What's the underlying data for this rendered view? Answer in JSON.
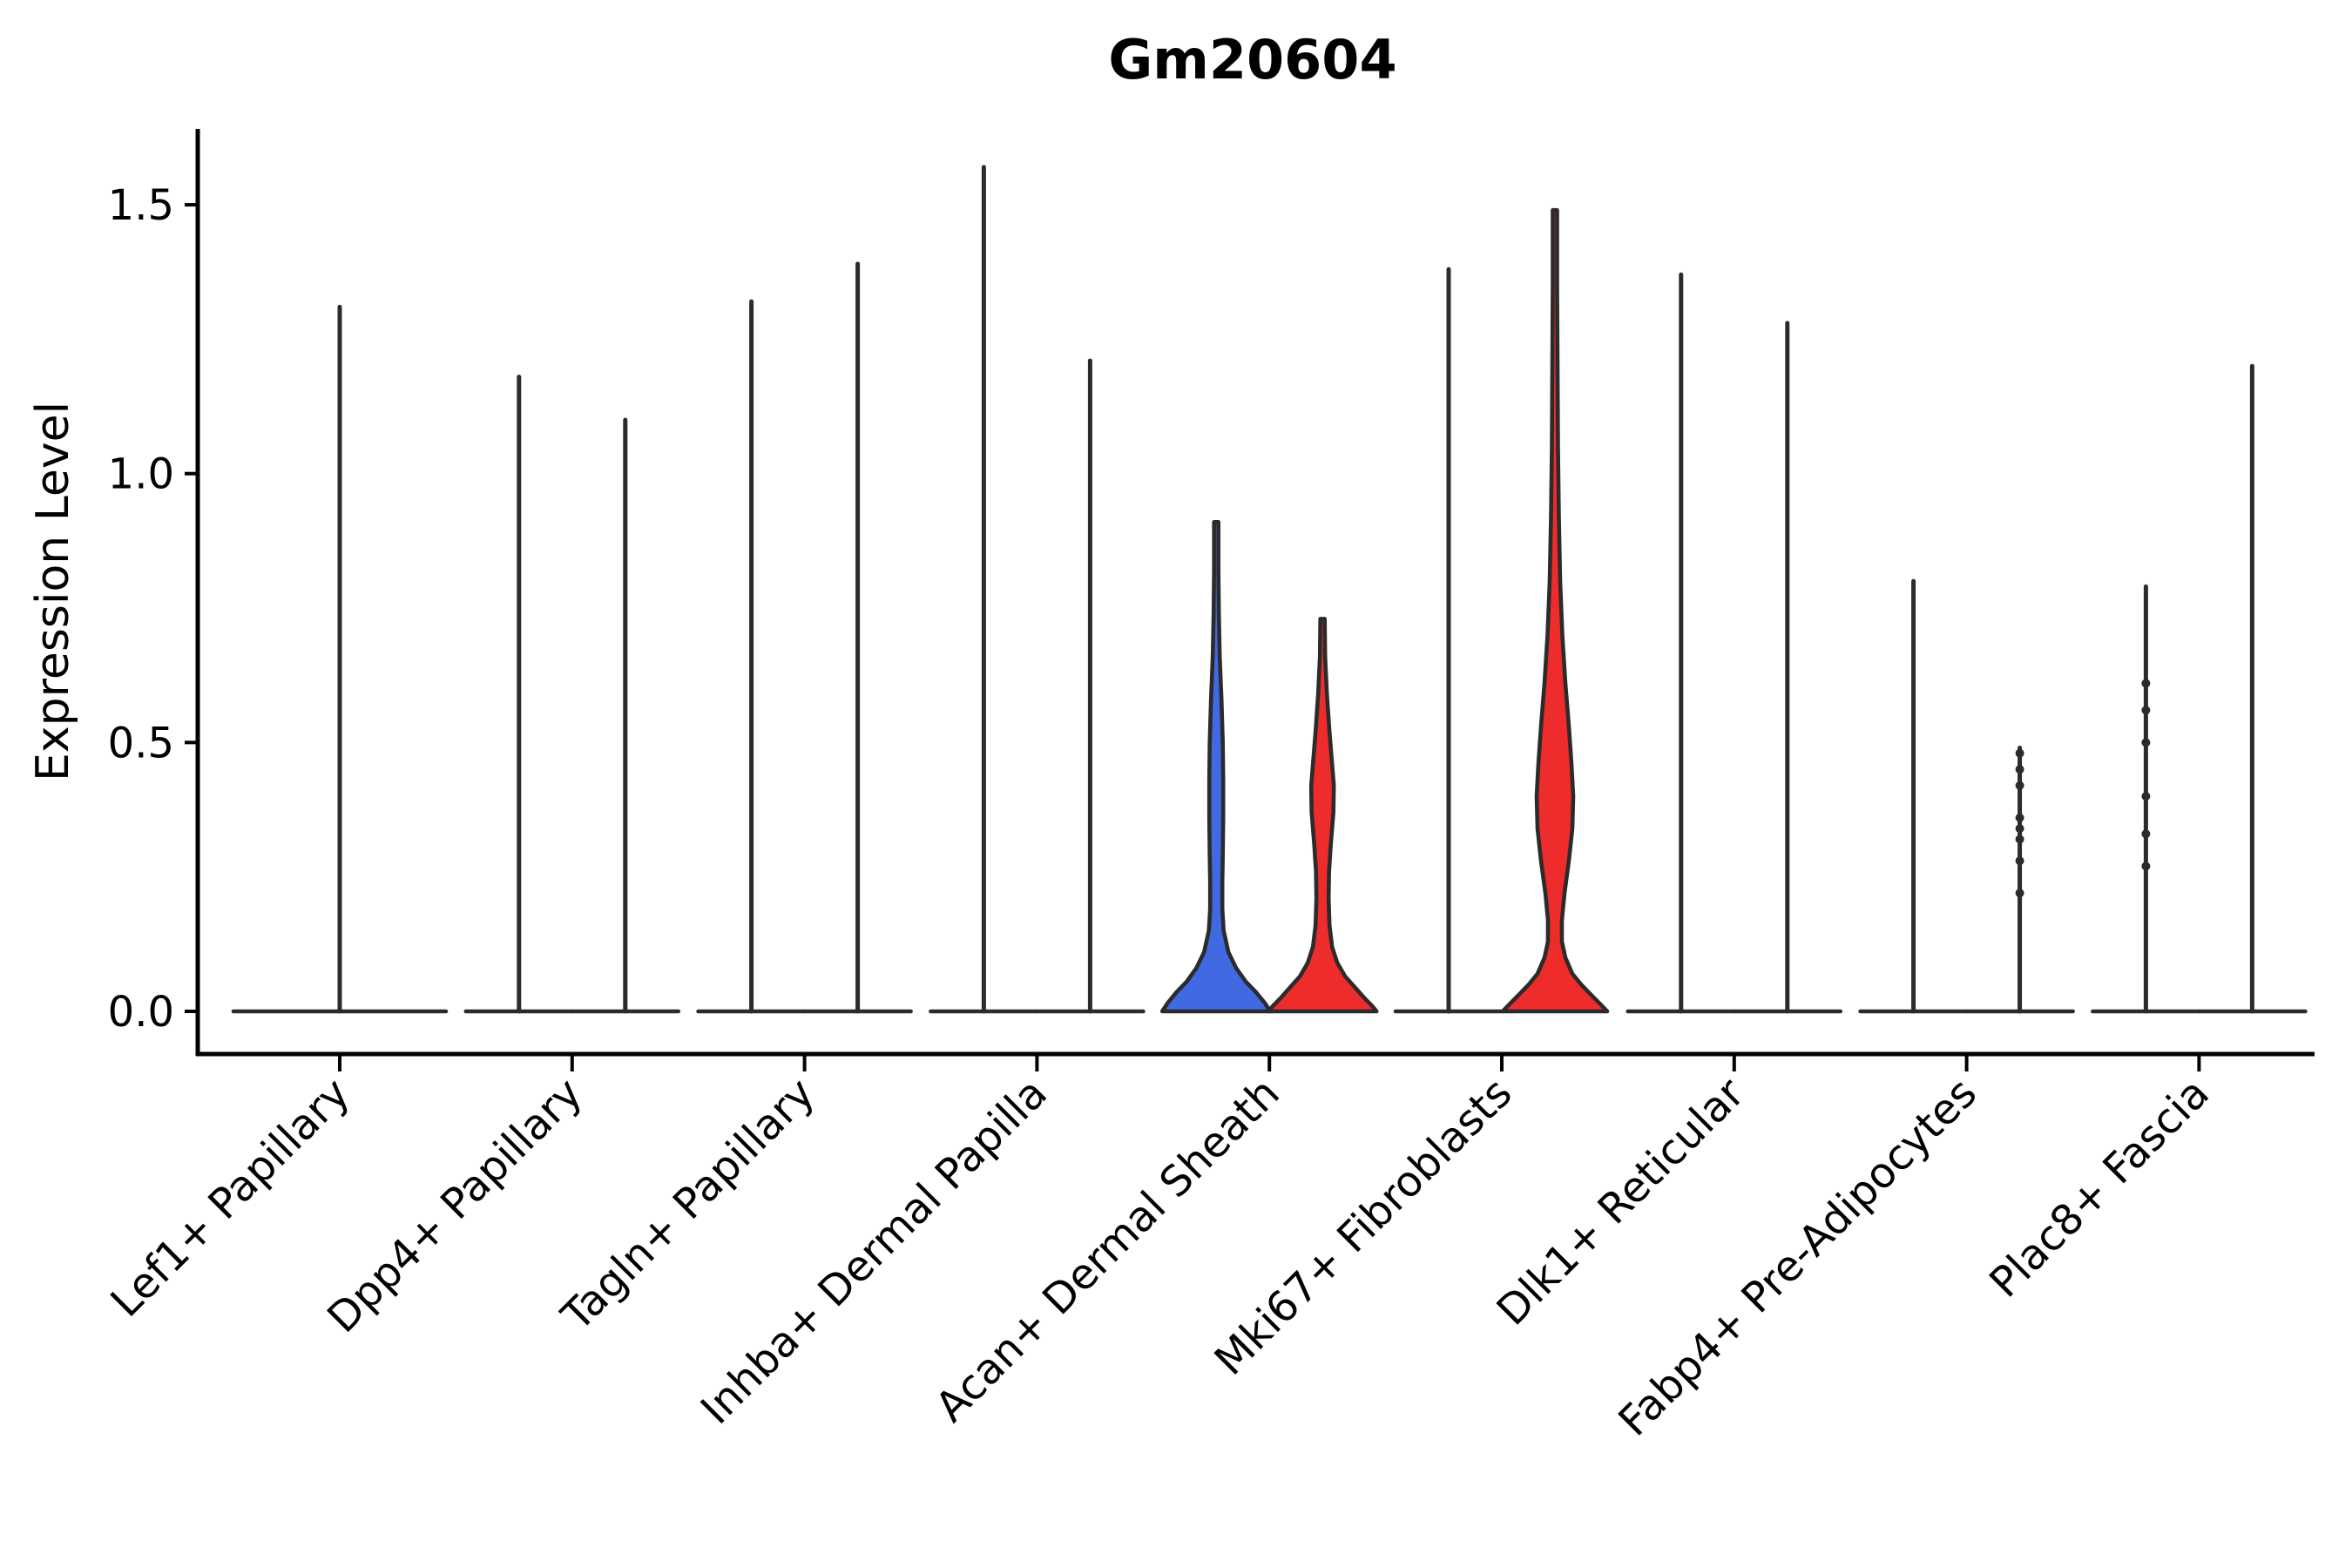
{
  "chart_data": {
    "type": "violin",
    "title": "Gm20604",
    "xlabel": "",
    "ylabel": "Expression Level",
    "yticks": [
      {
        "label": "0.0",
        "value": 0.0
      },
      {
        "label": "0.5",
        "value": 0.5
      },
      {
        "label": "1.0",
        "value": 1.0
      },
      {
        "label": "1.5",
        "value": 1.5
      }
    ],
    "ylim": [
      -0.05,
      1.64
    ],
    "grid": false,
    "legend": "none",
    "categories": [
      "Lef1+ Papillary",
      "Dpp4+ Papillary",
      "Tagln+ Papillary",
      "Inhba+ Dermal Papilla",
      "Acan+ Dermal Sheath",
      "Mki67+ Fibroblasts",
      "Dlk1+ Reticular",
      "Fabp4+ Pre-Adipocytes",
      "Plac8+ Fascia"
    ],
    "colors": {
      "blue_fill": "#4169E1",
      "red_fill": "#EE2C2C",
      "outline": "#2B2B2B",
      "axis": "#000000"
    },
    "violins": [
      {
        "category_index": 0,
        "side": "center",
        "span": "full",
        "max": 1.31,
        "fill": "none"
      },
      {
        "category_index": 1,
        "side": "left",
        "max": 1.18,
        "fill": "none"
      },
      {
        "category_index": 1,
        "side": "right",
        "max": 1.1,
        "fill": "none"
      },
      {
        "category_index": 2,
        "side": "left",
        "max": 1.32,
        "fill": "none"
      },
      {
        "category_index": 2,
        "side": "right",
        "max": 1.39,
        "fill": "none"
      },
      {
        "category_index": 3,
        "side": "left",
        "max": 1.57,
        "fill": "none"
      },
      {
        "category_index": 3,
        "side": "right",
        "max": 1.21,
        "fill": "none"
      },
      {
        "category_index": 4,
        "side": "left",
        "max": 0.91,
        "fill": "blue_fill",
        "profile": [
          [
            0.91,
            2.5
          ],
          [
            0.82,
            2.5
          ],
          [
            0.74,
            3
          ],
          [
            0.66,
            4
          ],
          [
            0.58,
            6
          ],
          [
            0.5,
            7.5
          ],
          [
            0.43,
            8
          ],
          [
            0.36,
            8
          ],
          [
            0.29,
            7.5
          ],
          [
            0.24,
            7
          ],
          [
            0.19,
            7
          ],
          [
            0.15,
            8.5
          ],
          [
            0.11,
            14
          ],
          [
            0.08,
            23
          ],
          [
            0.055,
            34
          ],
          [
            0.035,
            46
          ],
          [
            0.015,
            56
          ],
          [
            0.0,
            62
          ]
        ]
      },
      {
        "category_index": 4,
        "side": "right",
        "max": 0.73,
        "fill": "red_fill",
        "profile": [
          [
            0.73,
            2.5
          ],
          [
            0.66,
            3
          ],
          [
            0.59,
            5
          ],
          [
            0.52,
            8
          ],
          [
            0.46,
            11
          ],
          [
            0.42,
            13
          ],
          [
            0.37,
            12.5
          ],
          [
            0.31,
            9.5
          ],
          [
            0.26,
            7.5
          ],
          [
            0.21,
            7
          ],
          [
            0.16,
            8
          ],
          [
            0.12,
            11
          ],
          [
            0.09,
            17
          ],
          [
            0.065,
            26
          ],
          [
            0.045,
            37
          ],
          [
            0.025,
            48
          ],
          [
            0.01,
            57
          ],
          [
            0.0,
            62
          ]
        ]
      },
      {
        "category_index": 5,
        "side": "left",
        "max": 1.38,
        "fill": "none"
      },
      {
        "category_index": 5,
        "side": "right",
        "max": 1.49,
        "fill": "red_fill",
        "profile": [
          [
            1.49,
            2.5
          ],
          [
            1.35,
            2.5
          ],
          [
            1.2,
            3
          ],
          [
            1.05,
            3.5
          ],
          [
            0.92,
            4.5
          ],
          [
            0.8,
            6
          ],
          [
            0.7,
            8.5
          ],
          [
            0.61,
            12
          ],
          [
            0.53,
            16
          ],
          [
            0.46,
            19
          ],
          [
            0.4,
            21
          ],
          [
            0.34,
            20
          ],
          [
            0.28,
            16
          ],
          [
            0.22,
            11
          ],
          [
            0.17,
            8
          ],
          [
            0.13,
            8
          ],
          [
            0.1,
            12
          ],
          [
            0.07,
            20
          ],
          [
            0.05,
            30
          ],
          [
            0.03,
            42
          ],
          [
            0.012,
            53
          ],
          [
            0.0,
            60
          ]
        ]
      },
      {
        "category_index": 6,
        "side": "left",
        "max": 1.37,
        "fill": "none"
      },
      {
        "category_index": 6,
        "side": "right",
        "max": 1.28,
        "fill": "none"
      },
      {
        "category_index": 7,
        "side": "left",
        "max": 0.8,
        "fill": "none"
      },
      {
        "category_index": 7,
        "side": "right",
        "max": 0.49,
        "fill": "none",
        "dots": [
          0.48,
          0.45,
          0.42,
          0.36,
          0.34,
          0.32,
          0.28,
          0.22
        ]
      },
      {
        "category_index": 8,
        "side": "left",
        "max": 0.79,
        "fill": "none",
        "dots": [
          0.61,
          0.56,
          0.5,
          0.4,
          0.33,
          0.27
        ]
      },
      {
        "category_index": 8,
        "side": "right",
        "max": 1.2,
        "fill": "none"
      }
    ]
  }
}
